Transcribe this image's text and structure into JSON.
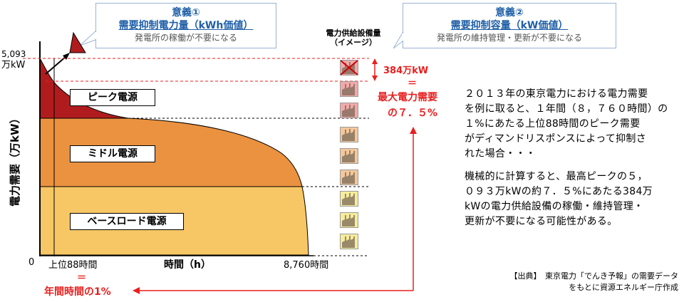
{
  "callout1": {
    "title": "意義①",
    "subtitle": "需要抑制電力量（kWh価値）",
    "note": "発電所の稼働が不要になる"
  },
  "callout2": {
    "title": "意義②",
    "subtitle": "需要抑制容量（kW価値）",
    "note": "発電所の維持管理・更新が不要になる"
  },
  "facility_title_line1": "電力供給設備量",
  "facility_title_line2": "（イメージ）",
  "y_axis_title": "電力需要（万kW）",
  "y_tick_top_value": "5,093",
  "y_tick_top_unit": "万kW",
  "y_tick_zero": "0",
  "x_tick_88": "上位88時間",
  "x_axis_title": "時間（h）",
  "x_tick_end": "8,760時間",
  "equals_sign": "＝",
  "year_ratio": "年間時間の1%",
  "bands": {
    "peak": "ピーク電源",
    "middle": "ミドル電源",
    "base": "ベースロード電源"
  },
  "reduction": {
    "amount": "384万kW",
    "equals": "＝",
    "line1": "最大電力需要",
    "line2": "の７．５%"
  },
  "paragraph1": "２０１３年の東京電力における電力需要を例に取ると、１年間（８，７６０時間）の１%にあたる上位88時間のピーク需要がディマンドリスポンスによって抑制された場合・・・",
  "paragraph1_lines": [
    "２０１３年の東京電力における電力需要",
    "を例に取ると、１年間（８，７６０時間）の",
    "１%にあたる上位88時間のピーク需要",
    "がディマンドリスポンスによって抑制さ",
    "れた場合・・・"
  ],
  "paragraph2_lines": [
    "機械的に計算すると、最高ピークの５，",
    "０９３万kWの約７．５%にあたる384万",
    "kWの電力供給設備の稼働・維持管理・",
    "更新が不要になる可能性がある。"
  ],
  "source_line1": "【出典】　東京電力「でんき予報」の需要データ",
  "source_line2": "をもとに資源エネルギー庁作成",
  "colors": {
    "peak": "#b01c1e",
    "middle": "#eb9240",
    "base": "#f7c766",
    "accent_red": "#e8201f",
    "callout_blue": "#1f5fa8"
  }
}
